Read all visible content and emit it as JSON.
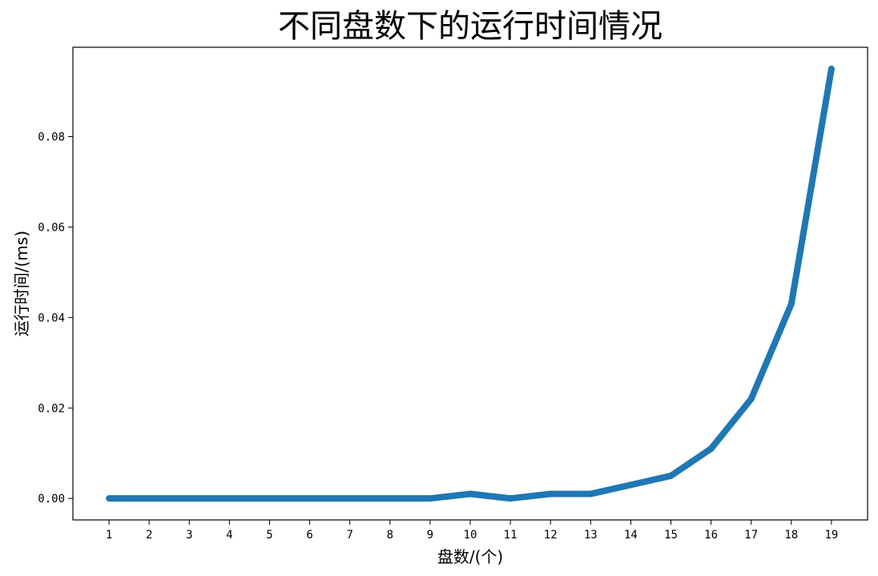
{
  "chart_data": {
    "type": "line",
    "title": "不同盘数下的运行时间情况",
    "xlabel": "盘数/(个)",
    "ylabel": "运行时间/(ms)",
    "x": [
      1,
      2,
      3,
      4,
      5,
      6,
      7,
      8,
      9,
      10,
      11,
      12,
      13,
      14,
      15,
      16,
      17,
      18,
      19
    ],
    "x_tick_labels": [
      "1",
      "2",
      "3",
      "4",
      "5",
      "6",
      "7",
      "8",
      "9",
      "10",
      "11",
      "12",
      "13",
      "14",
      "15",
      "16",
      "17",
      "18",
      "19"
    ],
    "series": [
      {
        "values": [
          0,
          0,
          0,
          0,
          0,
          0,
          0,
          0,
          0,
          0.001,
          0,
          0.001,
          0.001,
          0.003,
          0.005,
          0.011,
          0.022,
          0.043,
          0.095
        ],
        "color": "#1f77b4"
      }
    ],
    "y_ticks": [
      0,
      0.02,
      0.04,
      0.06,
      0.08
    ],
    "y_tick_labels": [
      "0.00",
      "0.02",
      "0.04",
      "0.06",
      "0.08"
    ],
    "xlim": [
      0.1,
      19.9
    ],
    "ylim": [
      -0.00475,
      0.09975
    ],
    "grid": false,
    "legend": "none"
  }
}
